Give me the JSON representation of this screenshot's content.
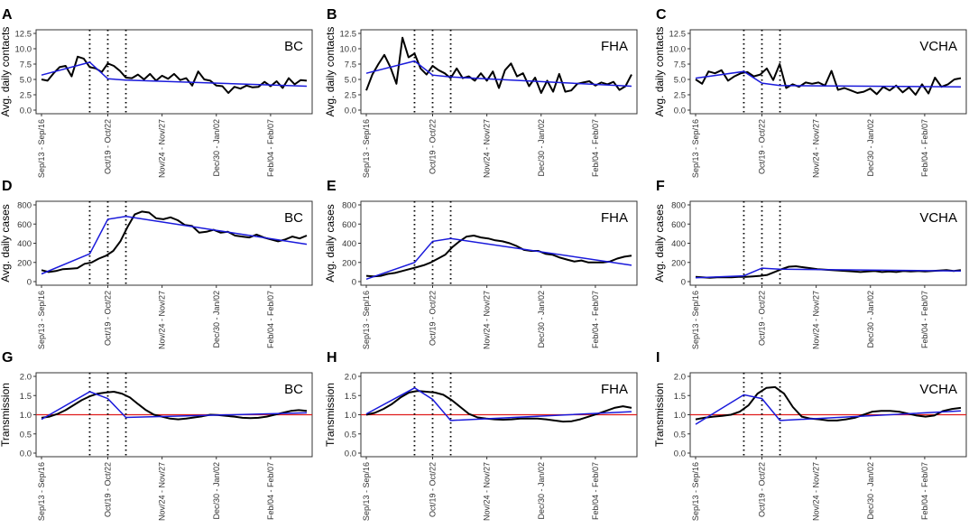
{
  "chart_data": [
    {
      "letter": "A",
      "type": "line",
      "region": "BC",
      "ylabel": "Avg. daily contacts",
      "ylim": [
        0,
        12.5
      ],
      "yticks": [
        "0.0",
        "2.5",
        "5.0",
        "7.5",
        "10.0",
        "12.5"
      ],
      "breaks": [
        8,
        11,
        14
      ],
      "ref_line": null,
      "observed": [
        5.0,
        4.8,
        6.0,
        7.0,
        7.2,
        5.5,
        8.7,
        8.4,
        7.0,
        6.8,
        6.2,
        7.6,
        7.2,
        6.4,
        5.3,
        5.2,
        5.8,
        5.0,
        5.9,
        4.8,
        5.6,
        5.1,
        5.9,
        4.9,
        5.2,
        4.0,
        6.3,
        5.0,
        4.8,
        4.0,
        3.9,
        2.8,
        3.8,
        3.5,
        4.0,
        3.7,
        3.8,
        4.6,
        3.9,
        4.7,
        3.6,
        5.2,
        4.2,
        4.9,
        4.8
      ],
      "fitted": [
        [
          0,
          5.7
        ],
        [
          8,
          7.8
        ],
        [
          11,
          5.1
        ],
        [
          14,
          4.9
        ],
        [
          44,
          3.9
        ]
      ]
    },
    {
      "letter": "B",
      "type": "line",
      "region": "FHA",
      "ylabel": "Avg. daily contacts",
      "ylim": [
        0,
        12.5
      ],
      "yticks": [
        "0.0",
        "2.5",
        "5.0",
        "7.5",
        "10.0",
        "12.5"
      ],
      "breaks": [
        8,
        11,
        14
      ],
      "ref_line": null,
      "observed": [
        3.2,
        5.8,
        7.5,
        9.0,
        7.0,
        4.3,
        11.8,
        8.6,
        9.2,
        6.8,
        5.8,
        7.2,
        6.5,
        6.0,
        5.2,
        6.8,
        5.2,
        5.5,
        4.8,
        6.0,
        4.8,
        6.3,
        3.6,
        6.5,
        7.6,
        5.5,
        6.0,
        3.9,
        5.3,
        2.8,
        4.8,
        3.0,
        5.9,
        3.0,
        3.2,
        4.3,
        4.5,
        4.7,
        4.0,
        4.5,
        4.2,
        4.6,
        3.3,
        3.9,
        5.8
      ],
      "fitted": [
        [
          0,
          6.0
        ],
        [
          8,
          8.0
        ],
        [
          11,
          5.7
        ],
        [
          14,
          5.4
        ],
        [
          44,
          3.9
        ]
      ]
    },
    {
      "letter": "C",
      "type": "line",
      "region": "VCHA",
      "ylabel": "Avg. daily contacts",
      "ylim": [
        0,
        12.5
      ],
      "yticks": [
        "0.0",
        "2.5",
        "5.0",
        "7.5",
        "10.0",
        "12.5"
      ],
      "breaks": [
        8,
        11,
        14
      ],
      "ref_line": null,
      "observed": [
        5.0,
        4.3,
        6.3,
        6.0,
        6.5,
        4.8,
        5.5,
        6.0,
        6.2,
        5.5,
        5.8,
        6.8,
        4.9,
        7.5,
        3.6,
        4.2,
        3.8,
        4.5,
        4.3,
        4.5,
        4.0,
        6.4,
        3.3,
        3.6,
        3.2,
        2.8,
        3.0,
        3.5,
        2.6,
        3.8,
        3.2,
        4.0,
        2.9,
        3.7,
        2.5,
        4.2,
        2.7,
        5.3,
        3.8,
        4.2,
        5.0,
        5.2
      ],
      "fitted": [
        [
          0,
          5.2
        ],
        [
          8,
          6.3
        ],
        [
          11,
          4.4
        ],
        [
          14,
          4.0
        ],
        [
          44,
          3.8
        ]
      ]
    },
    {
      "letter": "D",
      "type": "line",
      "region": "BC",
      "ylabel": "Avg. daily cases",
      "ylim": [
        0,
        800
      ],
      "yticks": [
        "0",
        "200",
        "400",
        "600",
        "800"
      ],
      "breaks": [
        8,
        11,
        14
      ],
      "ref_line": null,
      "observed": [
        120,
        100,
        110,
        130,
        135,
        140,
        185,
        200,
        240,
        270,
        320,
        420,
        570,
        700,
        730,
        720,
        660,
        650,
        670,
        640,
        590,
        580,
        510,
        520,
        540,
        510,
        520,
        480,
        470,
        460,
        490,
        460,
        440,
        420,
        440,
        470,
        450,
        480
      ],
      "fitted": [
        [
          0,
          80
        ],
        [
          8,
          290
        ],
        [
          11,
          650
        ],
        [
          14,
          680
        ],
        [
          44,
          390
        ]
      ]
    },
    {
      "letter": "E",
      "type": "line",
      "region": "FHA",
      "ylabel": "Avg. daily cases",
      "ylim": [
        0,
        800
      ],
      "yticks": [
        "0",
        "200",
        "400",
        "600",
        "800"
      ],
      "breaks": [
        8,
        11,
        14
      ],
      "ref_line": null,
      "observed": [
        60,
        55,
        60,
        80,
        90,
        110,
        130,
        150,
        170,
        200,
        240,
        280,
        360,
        420,
        470,
        480,
        460,
        450,
        430,
        420,
        400,
        370,
        330,
        320,
        320,
        290,
        280,
        250,
        230,
        210,
        220,
        200,
        200,
        200,
        210,
        240,
        260,
        270
      ],
      "fitted": [
        [
          0,
          25
        ],
        [
          8,
          200
        ],
        [
          11,
          420
        ],
        [
          14,
          450
        ],
        [
          44,
          170
        ]
      ]
    },
    {
      "letter": "F",
      "type": "line",
      "region": "VCHA",
      "ylabel": "Avg. daily cases",
      "ylim": [
        0,
        800
      ],
      "yticks": [
        "0",
        "200",
        "400",
        "600",
        "800"
      ],
      "breaks": [
        8,
        11,
        14
      ],
      "ref_line": null,
      "observed": [
        50,
        45,
        40,
        45,
        45,
        45,
        50,
        50,
        55,
        60,
        70,
        100,
        130,
        155,
        160,
        150,
        140,
        130,
        125,
        120,
        115,
        110,
        105,
        100,
        105,
        110,
        100,
        105,
        100,
        110,
        105,
        110,
        105,
        110,
        115,
        120,
        110,
        120
      ],
      "fitted": [
        [
          0,
          40
        ],
        [
          8,
          60
        ],
        [
          11,
          140
        ],
        [
          14,
          130
        ],
        [
          44,
          110
        ]
      ]
    },
    {
      "letter": "G",
      "type": "line",
      "region": "BC",
      "ylabel": "Transmission",
      "ylim": [
        0,
        2.0
      ],
      "yticks": [
        "0.0",
        "0.5",
        "1.0",
        "1.5",
        "2.0"
      ],
      "breaks": [
        8,
        11,
        14
      ],
      "ref_line": 1.0,
      "observed": [
        0.92,
        0.95,
        1.02,
        1.12,
        1.25,
        1.38,
        1.48,
        1.55,
        1.58,
        1.6,
        1.55,
        1.45,
        1.28,
        1.12,
        1.0,
        0.95,
        0.9,
        0.88,
        0.9,
        0.93,
        0.96,
        1.0,
        0.99,
        0.97,
        0.95,
        0.92,
        0.91,
        0.92,
        0.95,
        1.0,
        1.05,
        1.1,
        1.12,
        1.1
      ],
      "fitted": [
        [
          0,
          0.88
        ],
        [
          8,
          1.6
        ],
        [
          11,
          1.42
        ],
        [
          14,
          0.93
        ],
        [
          44,
          1.05
        ]
      ]
    },
    {
      "letter": "H",
      "type": "line",
      "region": "FHA",
      "ylabel": "Transmission",
      "ylim": [
        0,
        2.0
      ],
      "yticks": [
        "0.0",
        "0.5",
        "1.0",
        "1.5",
        "2.0"
      ],
      "breaks": [
        8,
        11,
        14
      ],
      "ref_line": 1.0,
      "observed": [
        1.0,
        1.05,
        1.15,
        1.28,
        1.45,
        1.58,
        1.62,
        1.6,
        1.58,
        1.52,
        1.38,
        1.2,
        1.02,
        0.93,
        0.9,
        0.88,
        0.87,
        0.88,
        0.9,
        0.9,
        0.9,
        0.88,
        0.85,
        0.82,
        0.83,
        0.88,
        0.95,
        1.02,
        1.1,
        1.18,
        1.22,
        1.18
      ],
      "fitted": [
        [
          0,
          1.02
        ],
        [
          8,
          1.7
        ],
        [
          11,
          1.4
        ],
        [
          14,
          0.85
        ],
        [
          44,
          1.08
        ]
      ]
    },
    {
      "letter": "I",
      "type": "line",
      "region": "VCHA",
      "ylabel": "Transmission",
      "ylim": [
        0,
        2.0
      ],
      "yticks": [
        "0.0",
        "0.5",
        "1.0",
        "1.5",
        "2.0"
      ],
      "breaks": [
        8,
        11,
        14
      ],
      "ref_line": 1.0,
      "observed": [
        0.88,
        0.92,
        0.95,
        0.97,
        1.0,
        1.08,
        1.25,
        1.55,
        1.7,
        1.72,
        1.55,
        1.2,
        0.95,
        0.9,
        0.88,
        0.85,
        0.85,
        0.88,
        0.92,
        1.0,
        1.08,
        1.1,
        1.1,
        1.08,
        1.03,
        0.98,
        0.95,
        0.98,
        1.1,
        1.15,
        1.18
      ],
      "fitted": [
        [
          0,
          0.75
        ],
        [
          8,
          1.52
        ],
        [
          11,
          1.42
        ],
        [
          14,
          0.85
        ],
        [
          44,
          1.1
        ]
      ]
    }
  ],
  "x_tick_labels": [
    "Sep/13 - Sep/16",
    "Oct/19 - Oct/22",
    "Nov/24 - Nov/27",
    "Dec/30 - Jan/02",
    "Feb/04 - Feb/07"
  ],
  "colors": {
    "observed": "#000000",
    "fitted": "#1a1adb",
    "reference": "#e01b1b",
    "breaks": "#000000"
  }
}
